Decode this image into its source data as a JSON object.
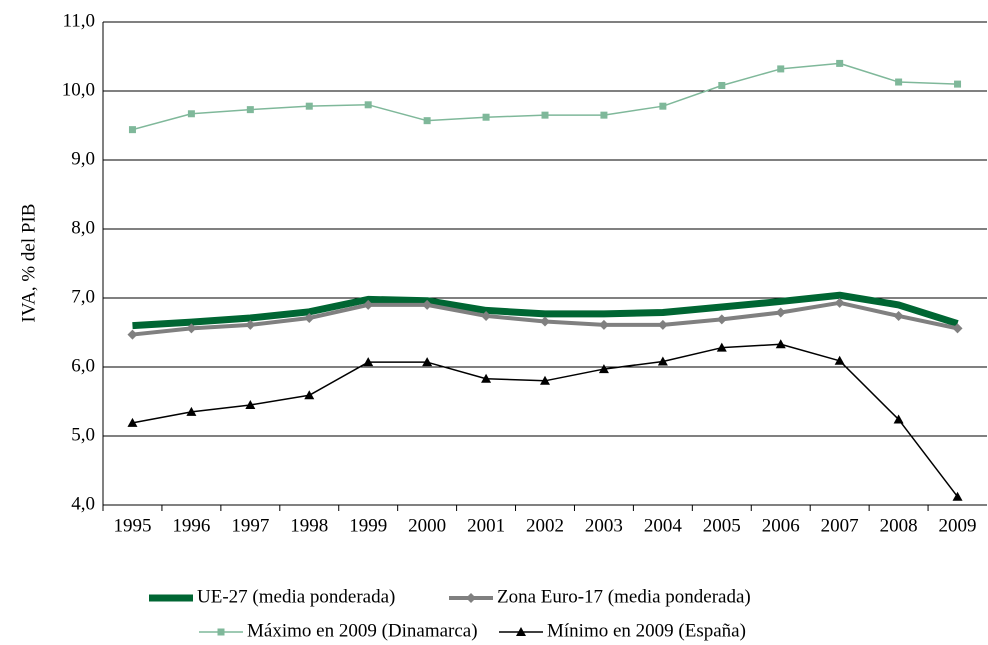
{
  "chart_data": {
    "type": "line",
    "y_label": "IVA, % del PIB",
    "categories": [
      "1995",
      "1996",
      "1997",
      "1998",
      "1999",
      "2000",
      "2001",
      "2002",
      "2003",
      "2004",
      "2005",
      "2006",
      "2007",
      "2008",
      "2009"
    ],
    "series": [
      {
        "name": "UE-27 (media ponderada)",
        "color": "#006633",
        "marker": "none",
        "width": 7,
        "values": [
          6.6,
          6.65,
          6.71,
          6.8,
          6.98,
          6.96,
          6.82,
          6.77,
          6.77,
          6.79,
          6.87,
          6.95,
          7.04,
          6.9,
          6.63
        ]
      },
      {
        "name": "Zona Euro-17 (media ponderada)",
        "color": "#808080",
        "marker": "diamond",
        "width": 4,
        "values": [
          6.47,
          6.56,
          6.61,
          6.71,
          6.9,
          6.9,
          6.74,
          6.66,
          6.61,
          6.61,
          6.69,
          6.79,
          6.93,
          6.74,
          6.56
        ]
      },
      {
        "name": "Máximo en 2009 (Dinamarca)",
        "color": "#7fb89a",
        "marker": "square",
        "width": 1.5,
        "values": [
          9.44,
          9.67,
          9.73,
          9.78,
          9.8,
          9.57,
          9.62,
          9.65,
          9.65,
          9.78,
          10.08,
          10.32,
          10.4,
          10.13,
          10.1
        ]
      },
      {
        "name": "Mínimo en 2009 (España)",
        "color": "#000000",
        "marker": "triangle",
        "width": 1.5,
        "values": [
          5.19,
          5.35,
          5.45,
          5.59,
          6.07,
          6.07,
          5.83,
          5.8,
          5.97,
          6.08,
          6.28,
          6.33,
          6.09,
          5.24,
          4.12
        ]
      }
    ],
    "ylim": [
      4,
      11
    ],
    "yticks": [
      {
        "value": 4,
        "label": "4,0"
      },
      {
        "value": 5,
        "label": "5,0"
      },
      {
        "value": 6,
        "label": "6,0"
      },
      {
        "value": 7,
        "label": "7,0"
      },
      {
        "value": 8,
        "label": "8,0"
      },
      {
        "value": 9,
        "label": "9,0"
      },
      {
        "value": 10,
        "label": "10,0"
      },
      {
        "value": 11,
        "label": "11,0"
      }
    ],
    "grid": true
  }
}
